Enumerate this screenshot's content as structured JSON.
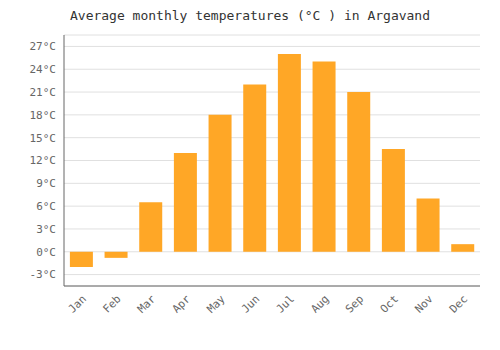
{
  "chart_data": {
    "type": "bar",
    "title": "Average monthly temperatures (°C ) in Argavand",
    "categories": [
      "Jan",
      "Feb",
      "Mar",
      "Apr",
      "May",
      "Jun",
      "Jul",
      "Aug",
      "Sep",
      "Oct",
      "Nov",
      "Dec"
    ],
    "values": [
      -2.0,
      -0.8,
      6.5,
      13.0,
      18.0,
      22.0,
      26.0,
      25.0,
      21.0,
      13.5,
      7.0,
      1.0
    ],
    "color": "#FFA726",
    "ylim": [
      -4.5,
      28.5
    ],
    "yticks": [
      {
        "value": -3,
        "label": "-3°C"
      },
      {
        "value": 0,
        "label": "0°C"
      },
      {
        "value": 3,
        "label": "3°C"
      },
      {
        "value": 6,
        "label": "6°C"
      },
      {
        "value": 9,
        "label": "9°C"
      },
      {
        "value": 12,
        "label": "12°C"
      },
      {
        "value": 15,
        "label": "15°C"
      },
      {
        "value": 18,
        "label": "18°C"
      },
      {
        "value": 21,
        "label": "21°C"
      },
      {
        "value": 24,
        "label": "24°C"
      },
      {
        "value": 27,
        "label": "27°C"
      }
    ],
    "grid": true
  }
}
